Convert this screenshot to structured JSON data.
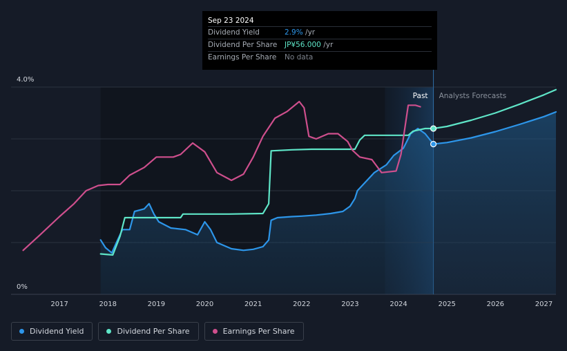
{
  "chart_data": {
    "type": "line",
    "title": "",
    "y_axis": {
      "min": 0,
      "max": 4.0,
      "tick_labels": [
        "4.0%",
        "0%"
      ]
    },
    "x_axis": {
      "range": [
        2016.0,
        2027.25
      ],
      "tick_labels": [
        "2017",
        "2018",
        "2019",
        "2020",
        "2021",
        "2022",
        "2023",
        "2024",
        "2025",
        "2026",
        "2027"
      ]
    },
    "regions": {
      "past_label": "Past",
      "forecast_label": "Analysts Forecasts",
      "past_start": 2023.72,
      "divider": 2024.72
    },
    "series": [
      {
        "name": "Dividend Yield",
        "color": "#2d96ea",
        "filled": true,
        "points": [
          [
            2017.85,
            1.05
          ],
          [
            2017.95,
            0.9
          ],
          [
            2018.08,
            0.8
          ],
          [
            2018.2,
            1.05
          ],
          [
            2018.3,
            1.25
          ],
          [
            2018.45,
            1.25
          ],
          [
            2018.55,
            1.6
          ],
          [
            2018.75,
            1.65
          ],
          [
            2018.85,
            1.75
          ],
          [
            2018.95,
            1.55
          ],
          [
            2019.05,
            1.4
          ],
          [
            2019.3,
            1.28
          ],
          [
            2019.6,
            1.25
          ],
          [
            2019.85,
            1.15
          ],
          [
            2020.0,
            1.4
          ],
          [
            2020.12,
            1.25
          ],
          [
            2020.25,
            1.0
          ],
          [
            2020.55,
            0.88
          ],
          [
            2020.8,
            0.85
          ],
          [
            2021.0,
            0.87
          ],
          [
            2021.2,
            0.92
          ],
          [
            2021.32,
            1.05
          ],
          [
            2021.37,
            1.43
          ],
          [
            2021.5,
            1.48
          ],
          [
            2021.8,
            1.5
          ],
          [
            2022.0,
            1.51
          ],
          [
            2022.3,
            1.53
          ],
          [
            2022.6,
            1.56
          ],
          [
            2022.85,
            1.6
          ],
          [
            2023.0,
            1.7
          ],
          [
            2023.1,
            1.85
          ],
          [
            2023.15,
            2.0
          ],
          [
            2023.3,
            2.15
          ],
          [
            2023.5,
            2.35
          ],
          [
            2023.75,
            2.5
          ],
          [
            2023.9,
            2.68
          ],
          [
            2024.1,
            2.82
          ],
          [
            2024.25,
            3.1
          ],
          [
            2024.4,
            3.2
          ],
          [
            2024.55,
            3.1
          ],
          [
            2024.72,
            2.9
          ]
        ]
      },
      {
        "name": "Dividend Yield Forecast",
        "color": "#2d96ea",
        "filled": true,
        "points": [
          [
            2024.72,
            2.9
          ],
          [
            2025.0,
            2.93
          ],
          [
            2025.5,
            3.02
          ],
          [
            2026.0,
            3.14
          ],
          [
            2026.5,
            3.28
          ],
          [
            2027.0,
            3.43
          ],
          [
            2027.25,
            3.52
          ]
        ]
      },
      {
        "name": "Dividend Per Share",
        "color": "#5fe6c8",
        "filled": false,
        "points": [
          [
            2017.85,
            0.78
          ],
          [
            2018.1,
            0.76
          ],
          [
            2018.25,
            1.12
          ],
          [
            2018.35,
            1.48
          ],
          [
            2018.6,
            1.48
          ],
          [
            2019.1,
            1.48
          ],
          [
            2019.5,
            1.48
          ],
          [
            2019.55,
            1.55
          ],
          [
            2020.0,
            1.55
          ],
          [
            2020.5,
            1.55
          ],
          [
            2021.2,
            1.56
          ],
          [
            2021.32,
            1.75
          ],
          [
            2021.37,
            2.77
          ],
          [
            2021.8,
            2.79
          ],
          [
            2022.2,
            2.8
          ],
          [
            2022.6,
            2.8
          ],
          [
            2023.1,
            2.8
          ],
          [
            2023.2,
            2.98
          ],
          [
            2023.3,
            3.07
          ],
          [
            2024.0,
            3.07
          ],
          [
            2024.2,
            3.07
          ],
          [
            2024.3,
            3.15
          ],
          [
            2024.55,
            3.2
          ],
          [
            2024.72,
            3.2
          ]
        ]
      },
      {
        "name": "Dividend Per Share Forecast",
        "color": "#5fe6c8",
        "filled": false,
        "points": [
          [
            2024.72,
            3.2
          ],
          [
            2025.0,
            3.24
          ],
          [
            2025.5,
            3.36
          ],
          [
            2026.0,
            3.5
          ],
          [
            2026.5,
            3.67
          ],
          [
            2027.0,
            3.85
          ],
          [
            2027.25,
            3.95
          ]
        ]
      },
      {
        "name": "Earnings Per Share",
        "color": "#cf4f8d",
        "filled": false,
        "points": [
          [
            2016.25,
            0.85
          ],
          [
            2016.6,
            1.15
          ],
          [
            2017.0,
            1.5
          ],
          [
            2017.3,
            1.75
          ],
          [
            2017.55,
            2.0
          ],
          [
            2017.8,
            2.1
          ],
          [
            2018.0,
            2.12
          ],
          [
            2018.25,
            2.12
          ],
          [
            2018.45,
            2.3
          ],
          [
            2018.75,
            2.45
          ],
          [
            2019.0,
            2.65
          ],
          [
            2019.35,
            2.65
          ],
          [
            2019.5,
            2.7
          ],
          [
            2019.75,
            2.92
          ],
          [
            2020.0,
            2.75
          ],
          [
            2020.25,
            2.35
          ],
          [
            2020.55,
            2.2
          ],
          [
            2020.8,
            2.32
          ],
          [
            2021.0,
            2.65
          ],
          [
            2021.2,
            3.05
          ],
          [
            2021.45,
            3.4
          ],
          [
            2021.7,
            3.53
          ],
          [
            2021.95,
            3.72
          ],
          [
            2022.05,
            3.6
          ],
          [
            2022.15,
            3.05
          ],
          [
            2022.3,
            3.0
          ],
          [
            2022.55,
            3.1
          ],
          [
            2022.75,
            3.1
          ],
          [
            2022.95,
            2.95
          ],
          [
            2023.05,
            2.78
          ],
          [
            2023.2,
            2.65
          ],
          [
            2023.45,
            2.6
          ],
          [
            2023.65,
            2.35
          ],
          [
            2023.95,
            2.38
          ],
          [
            2024.05,
            2.7
          ],
          [
            2024.2,
            3.65
          ],
          [
            2024.35,
            3.65
          ],
          [
            2024.45,
            3.62
          ]
        ]
      }
    ],
    "markers": [
      {
        "series": "Dividend Yield",
        "x": 2024.72,
        "y": 2.9
      },
      {
        "series": "Dividend Per Share",
        "x": 2024.72,
        "y": 3.2
      }
    ]
  },
  "tooltip": {
    "date": "Sep 23 2024",
    "rows": [
      {
        "label": "Dividend Yield",
        "value": "2.9%",
        "suffix": " /yr",
        "color": "#2d96ea"
      },
      {
        "label": "Dividend Per Share",
        "value": "JP¥56.000",
        "suffix": " /yr",
        "color": "#5fe6c8"
      },
      {
        "label": "Earnings Per Share",
        "value": "No data",
        "suffix": "",
        "color": "#7c828c"
      }
    ]
  },
  "legend": [
    {
      "label": "Dividend Yield",
      "color": "#2d96ea"
    },
    {
      "label": "Dividend Per Share",
      "color": "#5fe6c8"
    },
    {
      "label": "Earnings Per Share",
      "color": "#cf4f8d"
    }
  ]
}
